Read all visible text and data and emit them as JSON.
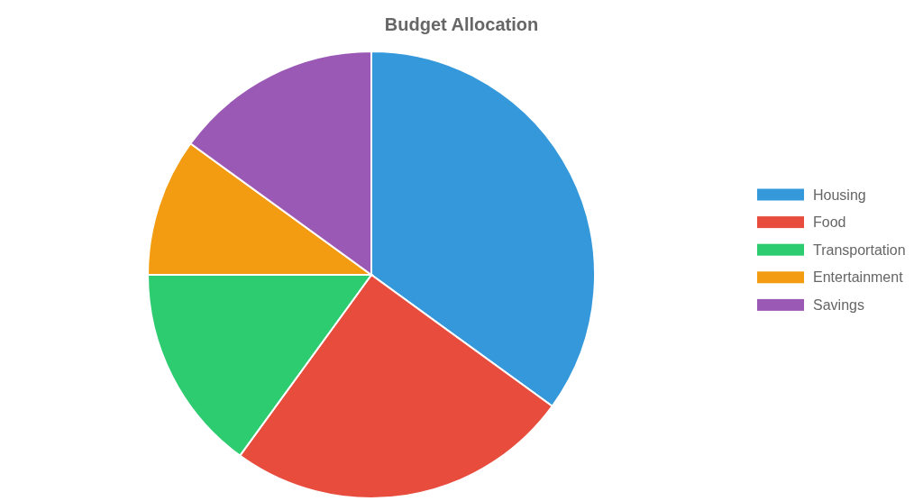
{
  "chart_data": {
    "type": "pie",
    "title": "Budget Allocation",
    "categories": [
      "Housing",
      "Food",
      "Transportation",
      "Entertainment",
      "Savings"
    ],
    "values": [
      35,
      25,
      15,
      10,
      15
    ],
    "colors": [
      "#3498db",
      "#e74c3c",
      "#2ecc71",
      "#f39c12",
      "#9b59b6"
    ],
    "legend": "right"
  }
}
